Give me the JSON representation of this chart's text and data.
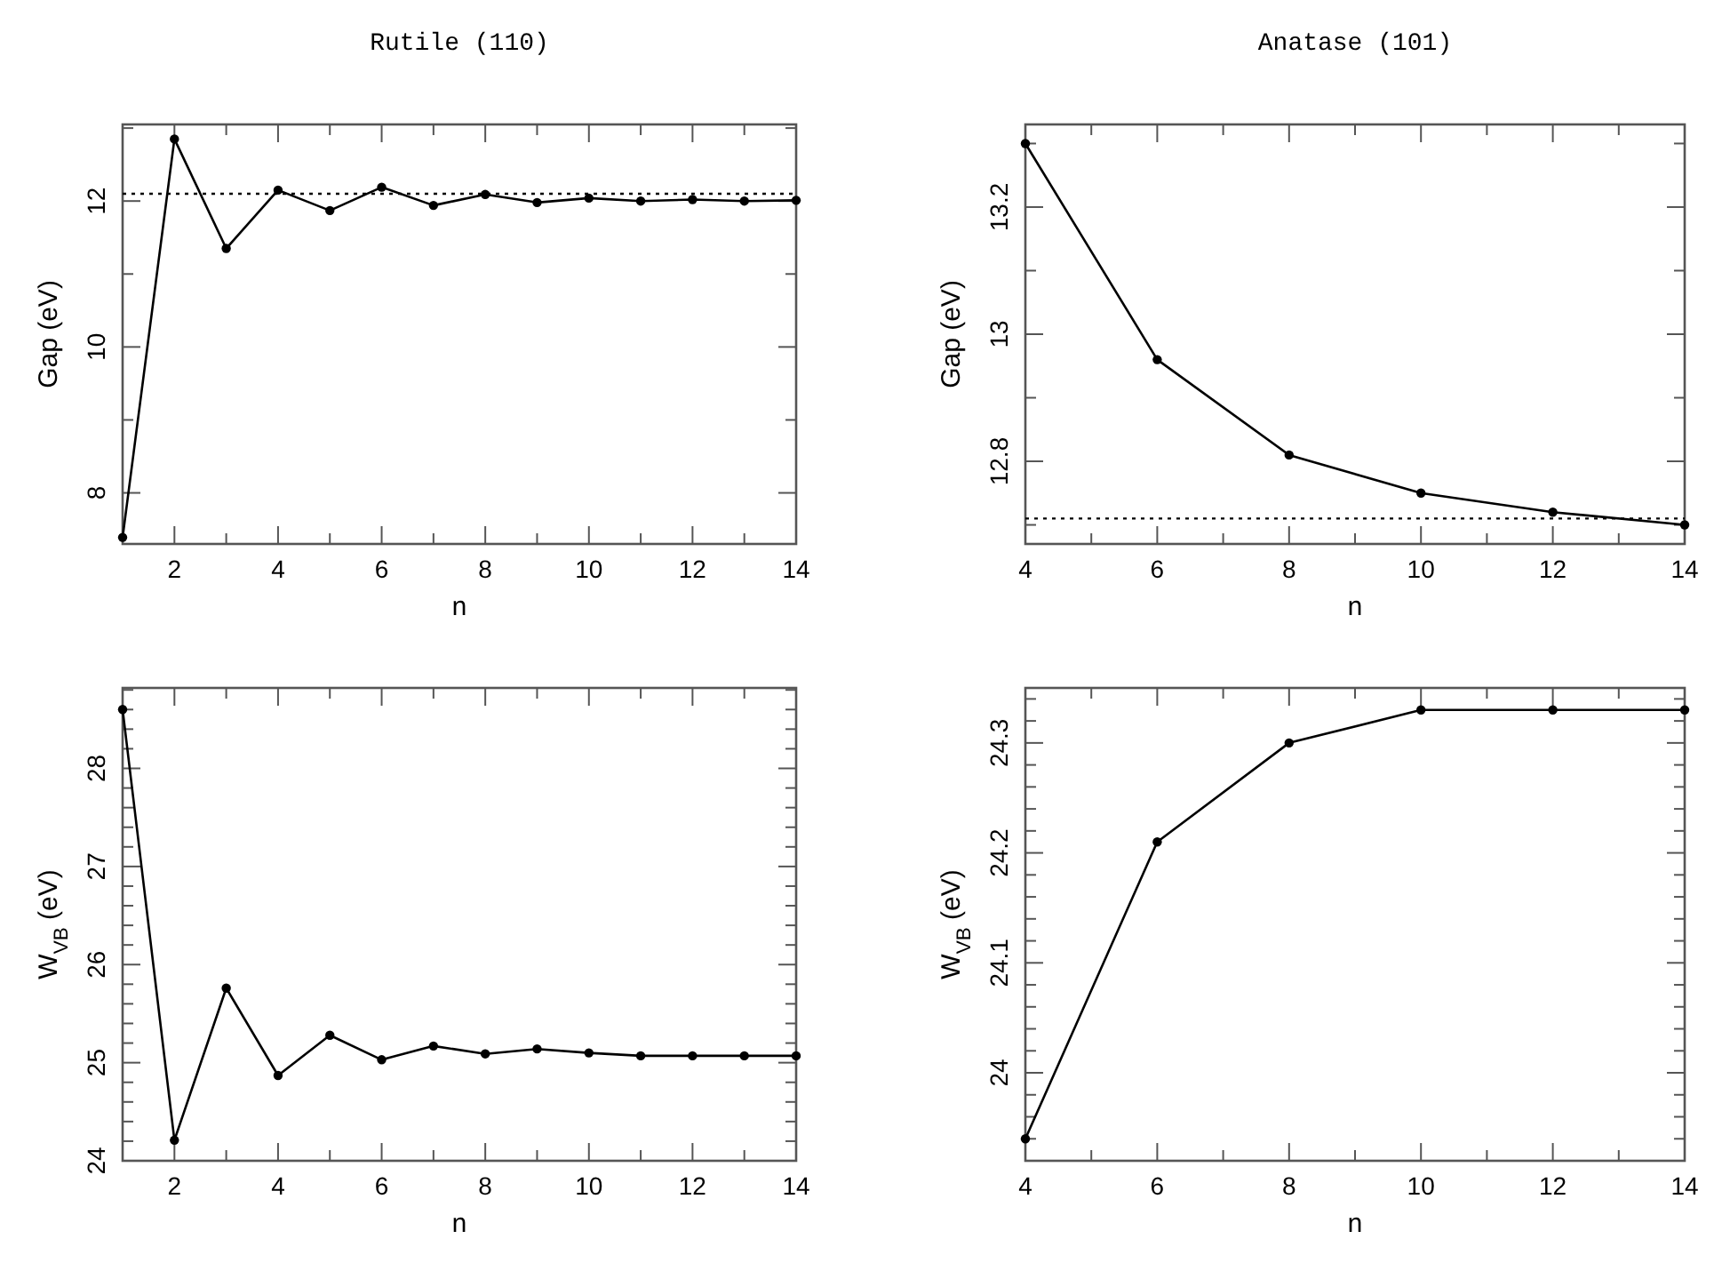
{
  "chart_data": [
    {
      "type": "line",
      "title": "Rutile (110)",
      "xlabel": "n",
      "ylabel": "Gap (eV)",
      "marker": "circle",
      "line_style": "solid",
      "grid": false,
      "x": [
        1,
        2,
        3,
        4,
        5,
        6,
        7,
        8,
        9,
        10,
        11,
        12,
        13,
        14
      ],
      "series": [
        {
          "color": "#000000",
          "values": [
            7.39,
            12.85,
            11.35,
            12.15,
            11.87,
            12.19,
            11.94,
            12.09,
            11.98,
            12.04,
            12.0,
            12.02,
            12.0,
            12.01
          ]
        }
      ],
      "xlim": [
        1,
        14
      ],
      "xticks": [
        {
          "value": 1,
          "label": null
        },
        2,
        {
          "value": 3,
          "label": null
        },
        4,
        {
          "value": 5,
          "label": null
        },
        6,
        {
          "value": 7,
          "label": null
        },
        8,
        {
          "value": 9,
          "label": null
        },
        10,
        {
          "value": 11,
          "label": null
        },
        12,
        {
          "value": 13,
          "label": null
        },
        14
      ],
      "ylim": [
        7.3,
        13.05
      ],
      "yticks": [
        8,
        {
          "value": 9,
          "label": null
        },
        10,
        {
          "value": 11,
          "label": null
        },
        12,
        {
          "value": 13,
          "label": null
        }
      ],
      "ref_lines": [
        {
          "axis": "y",
          "value": 12.1,
          "label": null,
          "color": "#000000",
          "line_style": "dotted"
        }
      ]
    },
    {
      "type": "line",
      "title": "Anatase (101)",
      "xlabel": "n",
      "ylabel": "Gap (eV)",
      "marker": "circle",
      "line_style": "solid",
      "grid": false,
      "x": [
        4,
        6,
        8,
        10,
        12,
        14
      ],
      "series": [
        {
          "color": "#000000",
          "values": [
            13.3,
            12.96,
            12.81,
            12.75,
            12.72,
            12.7
          ]
        }
      ],
      "xlim": [
        4,
        14
      ],
      "xticks": [
        4,
        {
          "value": 5,
          "label": null
        },
        6,
        {
          "value": 7,
          "label": null
        },
        8,
        {
          "value": 9,
          "label": null
        },
        10,
        {
          "value": 11,
          "label": null
        },
        12,
        {
          "value": 13,
          "label": null
        },
        14
      ],
      "ylim": [
        12.67,
        13.33
      ],
      "yticks": [
        {
          "value": 12.7,
          "label": null
        },
        12.8,
        {
          "value": 12.9,
          "label": null
        },
        13,
        {
          "value": 13.1,
          "label": null
        },
        13.2,
        {
          "value": 13.3,
          "label": null
        }
      ],
      "ref_lines": [
        {
          "axis": "y",
          "value": 12.71,
          "label": null,
          "color": "#000000",
          "line_style": "dotted"
        }
      ]
    },
    {
      "type": "line",
      "xlabel": "n",
      "ylabel": "W$_{VB}$ (eV)",
      "marker": "circle",
      "line_style": "solid",
      "grid": false,
      "x": [
        1,
        2,
        3,
        4,
        5,
        6,
        7,
        8,
        9,
        10,
        11,
        12,
        13,
        14
      ],
      "series": [
        {
          "color": "#000000",
          "values": [
            28.6,
            24.21,
            25.76,
            24.87,
            25.28,
            25.03,
            25.17,
            25.09,
            25.14,
            25.1,
            25.07,
            25.07,
            25.07,
            25.07
          ]
        }
      ],
      "xlim": [
        1,
        14
      ],
      "xticks": [
        {
          "value": 1,
          "label": null
        },
        2,
        {
          "value": 3,
          "label": null
        },
        4,
        {
          "value": 5,
          "label": null
        },
        6,
        {
          "value": 7,
          "label": null
        },
        8,
        {
          "value": 9,
          "label": null
        },
        10,
        {
          "value": 11,
          "label": null
        },
        12,
        {
          "value": 13,
          "label": null
        },
        14
      ],
      "ylim": [
        24,
        28.82
      ],
      "yticks": [
        24,
        {
          "value": 24.2,
          "label": null
        },
        {
          "value": 24.4,
          "label": null
        },
        {
          "value": 24.6,
          "label": null
        },
        {
          "value": 24.8,
          "label": null
        },
        25,
        {
          "value": 25.2,
          "label": null
        },
        {
          "value": 25.4,
          "label": null
        },
        {
          "value": 25.6,
          "label": null
        },
        {
          "value": 25.8,
          "label": null
        },
        26,
        {
          "value": 26.2,
          "label": null
        },
        {
          "value": 26.4,
          "label": null
        },
        {
          "value": 26.6,
          "label": null
        },
        {
          "value": 26.8,
          "label": null
        },
        27,
        {
          "value": 27.2,
          "label": null
        },
        {
          "value": 27.4,
          "label": null
        },
        {
          "value": 27.6,
          "label": null
        },
        {
          "value": 27.8,
          "label": null
        },
        28,
        {
          "value": 28.2,
          "label": null
        },
        {
          "value": 28.4,
          "label": null
        },
        {
          "value": 28.6,
          "label": null
        },
        {
          "value": 28.8,
          "label": null
        }
      ]
    },
    {
      "type": "line",
      "xlabel": "n",
      "ylabel": "W$_{VB}$ (eV)",
      "marker": "circle",
      "line_style": "solid",
      "grid": false,
      "x": [
        4,
        6,
        8,
        10,
        12,
        14
      ],
      "series": [
        {
          "color": "#000000",
          "values": [
            23.94,
            24.21,
            24.3,
            24.33,
            24.33,
            24.33
          ]
        }
      ],
      "xlim": [
        4,
        14
      ],
      "xticks": [
        4,
        {
          "value": 5,
          "label": null
        },
        6,
        {
          "value": 7,
          "label": null
        },
        8,
        {
          "value": 9,
          "label": null
        },
        10,
        {
          "value": 11,
          "label": null
        },
        12,
        {
          "value": 13,
          "label": null
        },
        14
      ],
      "ylim": [
        23.92,
        24.35
      ],
      "yticks": [
        {
          "value": 23.94,
          "label": null
        },
        {
          "value": 23.96,
          "label": null
        },
        {
          "value": 23.98,
          "label": null
        },
        24,
        {
          "value": 24.02,
          "label": null
        },
        {
          "value": 24.04,
          "label": null
        },
        {
          "value": 24.06,
          "label": null
        },
        {
          "value": 24.08,
          "label": null
        },
        24.1,
        {
          "value": 24.12,
          "label": null
        },
        {
          "value": 24.14,
          "label": null
        },
        {
          "value": 24.16,
          "label": null
        },
        {
          "value": 24.18,
          "label": null
        },
        24.2,
        {
          "value": 24.22,
          "label": null
        },
        {
          "value": 24.24,
          "label": null
        },
        {
          "value": 24.26,
          "label": null
        },
        {
          "value": 24.28,
          "label": null
        },
        24.3,
        {
          "value": 24.32,
          "label": null
        },
        {
          "value": 24.34,
          "label": null
        }
      ]
    }
  ]
}
